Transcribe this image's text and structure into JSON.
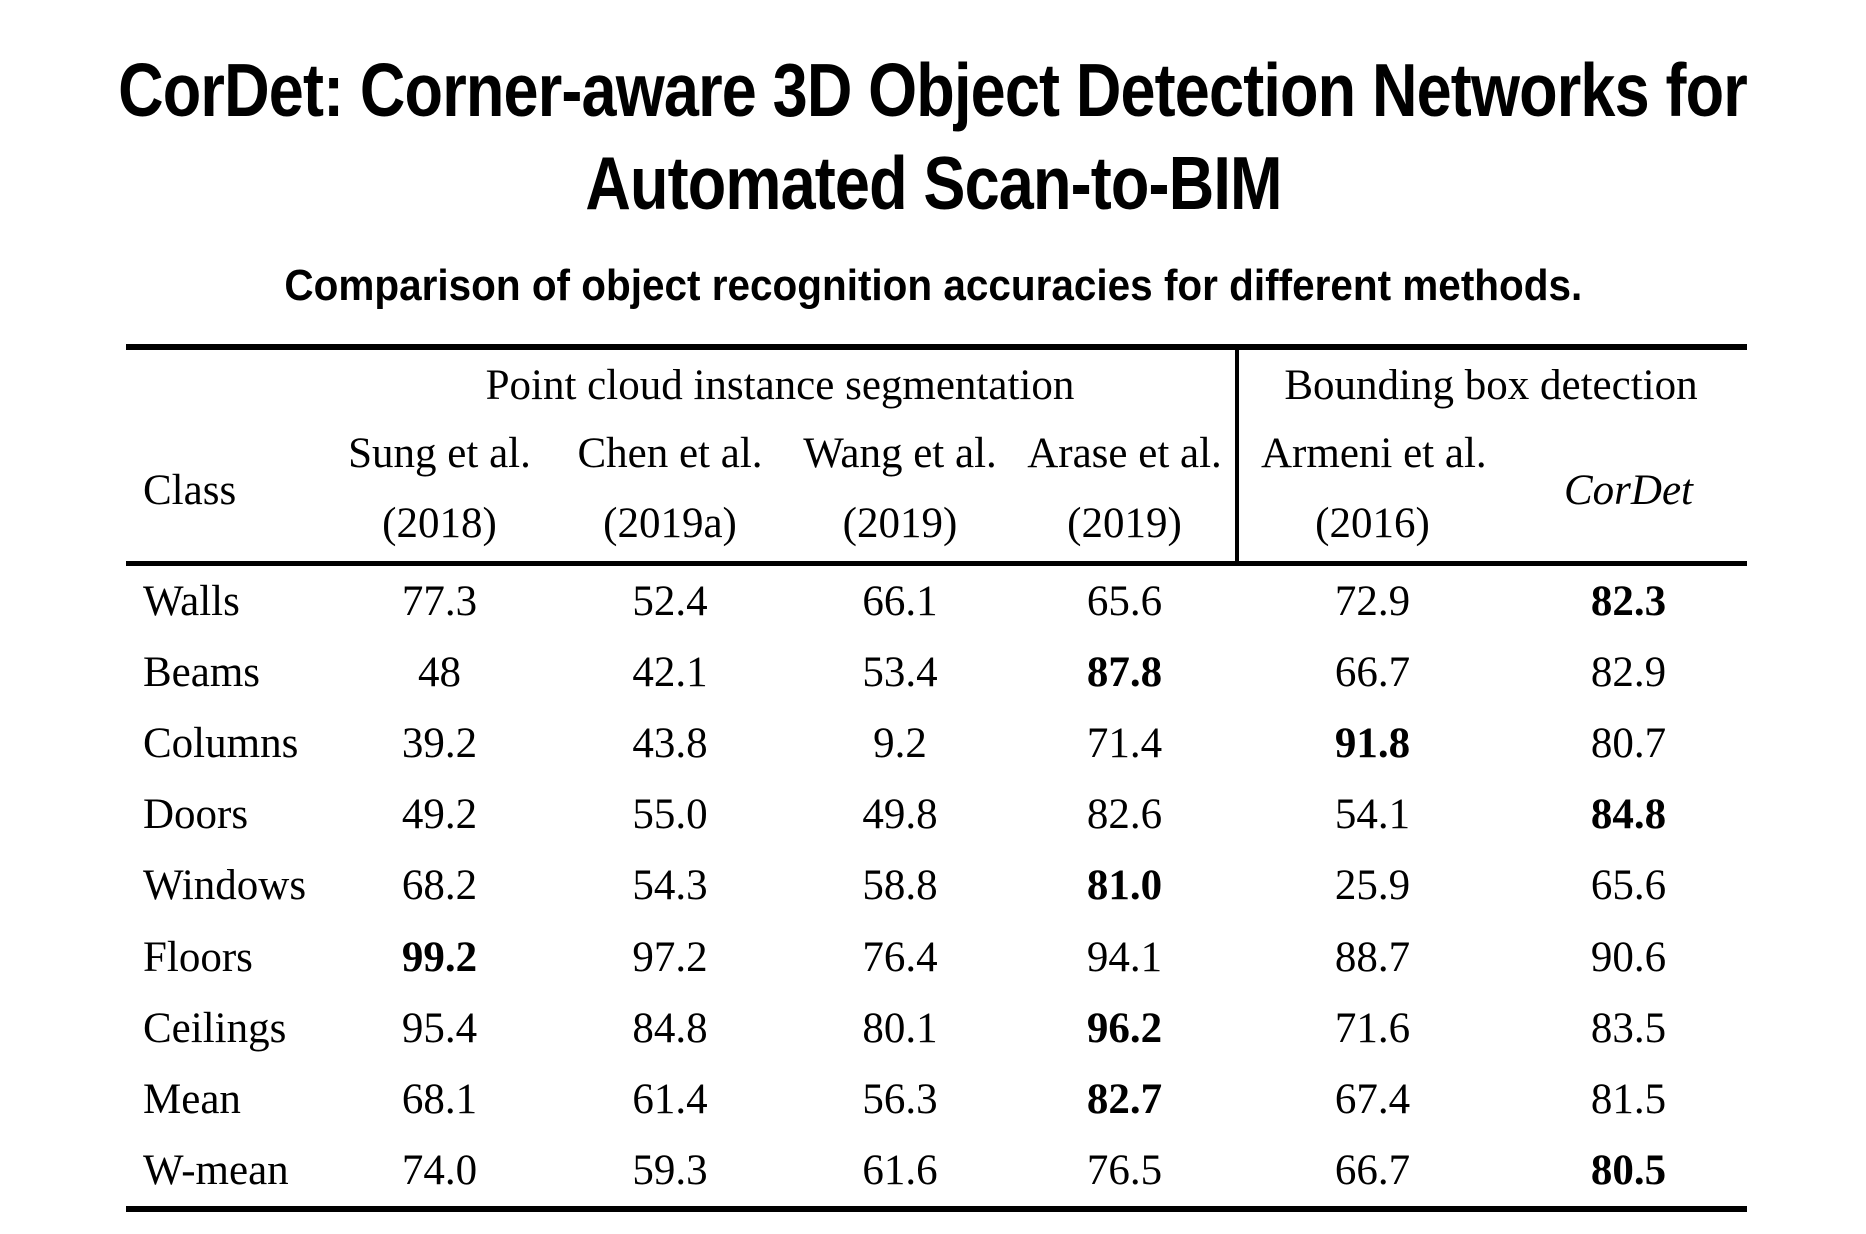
{
  "title": {
    "line1": "CorDet: Corner-aware 3D Object Detection Networks for",
    "line2": "Automated Scan-to-BIM"
  },
  "subtitle": "Comparison of object recognition accuracies for different methods.",
  "table": {
    "group_headers": {
      "segmentation": "Point cloud instance segmentation",
      "detection": "Bounding box detection"
    },
    "class_header": "Class",
    "method_headers": [
      {
        "name": "Sung et al.",
        "year": "(2018)"
      },
      {
        "name": "Chen et al.",
        "year": "(2019a)"
      },
      {
        "name": "Wang et al.",
        "year": "(2019)"
      },
      {
        "name": "Arase et al.",
        "year": "(2019)"
      },
      {
        "name": "Armeni et al.",
        "year": "(2016)"
      },
      {
        "name": "CorDet",
        "year": ""
      }
    ],
    "rows": [
      {
        "class": "Walls",
        "values": [
          "77.3",
          "52.4",
          "66.1",
          "65.6",
          "72.9",
          "82.3"
        ],
        "bold_index": 5
      },
      {
        "class": "Beams",
        "values": [
          "48",
          "42.1",
          "53.4",
          "87.8",
          "66.7",
          "82.9"
        ],
        "bold_index": 3
      },
      {
        "class": "Columns",
        "values": [
          "39.2",
          "43.8",
          "9.2",
          "71.4",
          "91.8",
          "80.7"
        ],
        "bold_index": 4
      },
      {
        "class": "Doors",
        "values": [
          "49.2",
          "55.0",
          "49.8",
          "82.6",
          "54.1",
          "84.8"
        ],
        "bold_index": 5
      },
      {
        "class": "Windows",
        "values": [
          "68.2",
          "54.3",
          "58.8",
          "81.0",
          "25.9",
          "65.6"
        ],
        "bold_index": 3
      },
      {
        "class": "Floors",
        "values": [
          "99.2",
          "97.2",
          "76.4",
          "94.1",
          "88.7",
          "90.6"
        ],
        "bold_index": 0
      },
      {
        "class": "Ceilings",
        "values": [
          "95.4",
          "84.8",
          "80.1",
          "96.2",
          "71.6",
          "83.5"
        ],
        "bold_index": 3
      },
      {
        "class": "Mean",
        "values": [
          "68.1",
          "61.4",
          "56.3",
          "82.7",
          "67.4",
          "81.5"
        ],
        "bold_index": 3
      },
      {
        "class": "W-mean",
        "values": [
          "74.0",
          "59.3",
          "61.6",
          "76.5",
          "66.7",
          "80.5"
        ],
        "bold_index": 5
      }
    ]
  },
  "chart_data": {
    "type": "table",
    "title": "Comparison of object recognition accuracies for different methods.",
    "column_groups": [
      {
        "label": "Point cloud instance segmentation",
        "columns": [
          "Sung et al. (2018)",
          "Chen et al. (2019a)",
          "Wang et al. (2019)",
          "Arase et al. (2019)"
        ]
      },
      {
        "label": "Bounding box detection",
        "columns": [
          "Armeni et al. (2016)",
          "CorDet"
        ]
      }
    ],
    "categories": [
      "Walls",
      "Beams",
      "Columns",
      "Doors",
      "Windows",
      "Floors",
      "Ceilings",
      "Mean",
      "W-mean"
    ],
    "series": [
      {
        "name": "Sung et al. (2018)",
        "values": [
          77.3,
          48,
          39.2,
          49.2,
          68.2,
          99.2,
          95.4,
          68.1,
          74.0
        ]
      },
      {
        "name": "Chen et al. (2019a)",
        "values": [
          52.4,
          42.1,
          43.8,
          55.0,
          54.3,
          97.2,
          84.8,
          61.4,
          59.3
        ]
      },
      {
        "name": "Wang et al. (2019)",
        "values": [
          66.1,
          53.4,
          9.2,
          49.8,
          58.8,
          76.4,
          80.1,
          56.3,
          61.6
        ]
      },
      {
        "name": "Arase et al. (2019)",
        "values": [
          65.6,
          87.8,
          71.4,
          82.6,
          81.0,
          94.1,
          96.2,
          82.7,
          76.5
        ]
      },
      {
        "name": "Armeni et al. (2016)",
        "values": [
          72.9,
          66.7,
          91.8,
          54.1,
          25.9,
          88.7,
          71.6,
          67.4,
          66.7
        ]
      },
      {
        "name": "CorDet",
        "values": [
          82.3,
          82.9,
          80.7,
          84.8,
          65.6,
          90.6,
          83.5,
          81.5,
          80.5
        ]
      }
    ]
  }
}
